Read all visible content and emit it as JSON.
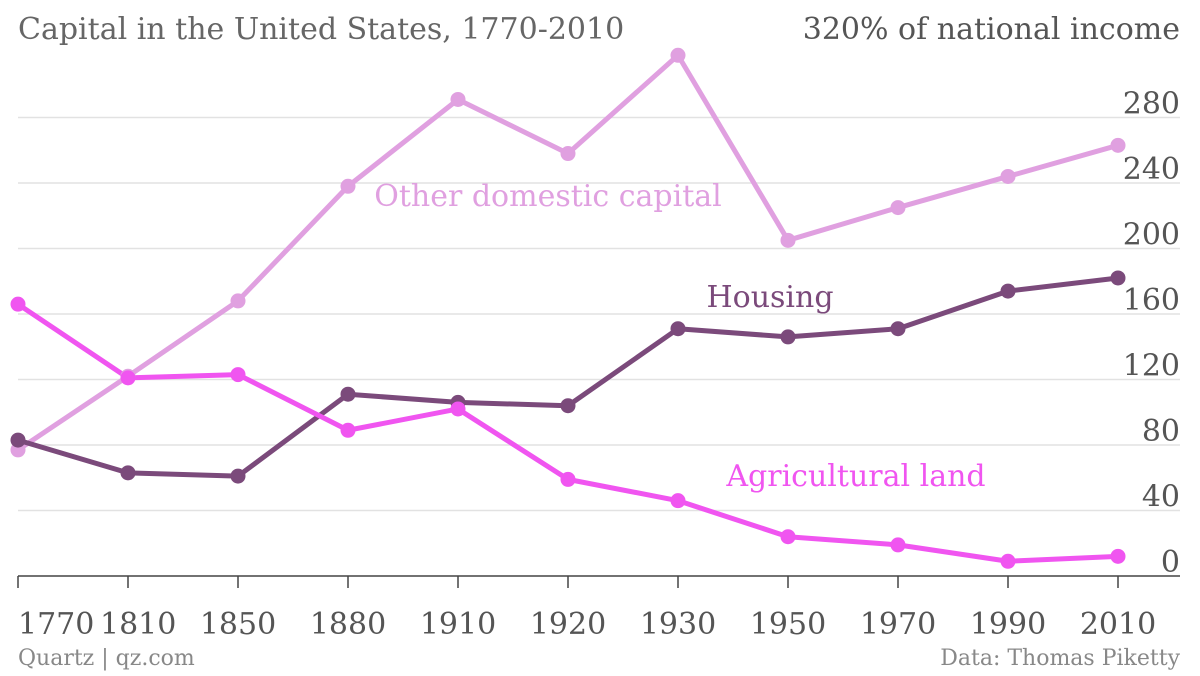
{
  "title": "Capital in the United States, 1770-2010",
  "footer": {
    "source_left": "Quartz | qz.com",
    "source_right": "Data: Thomas Piketty"
  },
  "chart_data": {
    "type": "line",
    "title": "Capital in the United States, 1770-2010",
    "ylabel": "",
    "top_tick_label": "320% of national income",
    "x": [
      1770,
      1810,
      1850,
      1880,
      1910,
      1920,
      1930,
      1950,
      1970,
      1990,
      2010
    ],
    "x_tick_labels": [
      "1770",
      "1810",
      "1850",
      "1880",
      "1910",
      "1920",
      "1930",
      "1950",
      "1970",
      "1990",
      "2010"
    ],
    "y_ticks": [
      0,
      40,
      80,
      120,
      160,
      200,
      240,
      280
    ],
    "y_tick_labels": [
      "0",
      "40",
      "80",
      "120",
      "160",
      "200",
      "240",
      "280"
    ],
    "ylim": [
      0,
      320
    ],
    "grid": true,
    "series": [
      {
        "name": "Other domestic capital",
        "color": "#e0a0e0",
        "values": [
          77,
          122,
          168,
          238,
          291,
          258,
          318,
          205,
          225,
          244,
          263
        ]
      },
      {
        "name": "Housing",
        "color": "#7b4a7b",
        "values": [
          83,
          63,
          61,
          111,
          106,
          104,
          151,
          146,
          151,
          174,
          182
        ]
      },
      {
        "name": "Agricultural land",
        "color": "#f055f0",
        "values": [
          166,
          121,
          123,
          89,
          102,
          59,
          46,
          24,
          19,
          9,
          12
        ]
      }
    ]
  }
}
